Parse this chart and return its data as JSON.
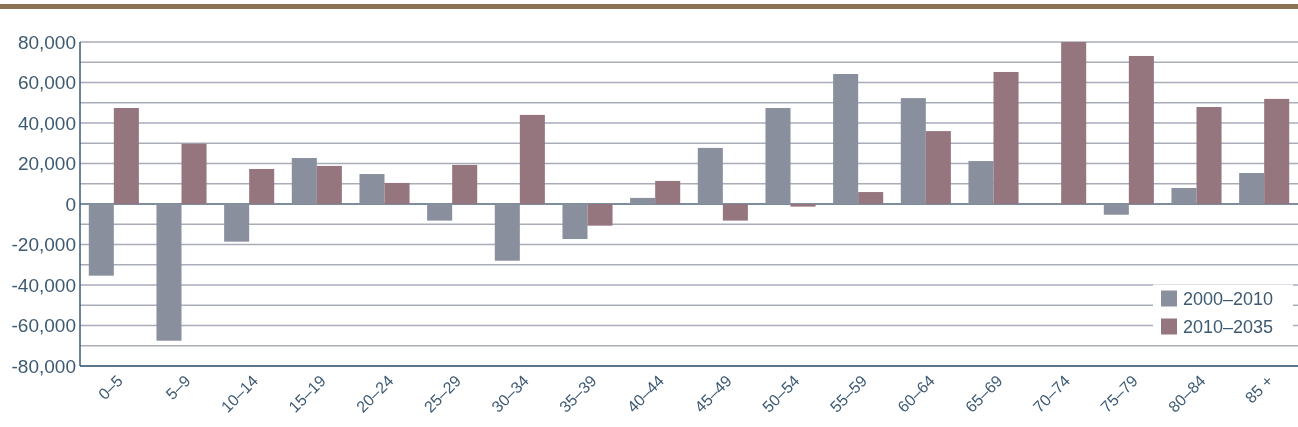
{
  "chart_data": {
    "type": "bar",
    "categories": [
      "0–5",
      "5–9",
      "10–14",
      "15–19",
      "20–24",
      "25–29",
      "30–34",
      "35–39",
      "40–44",
      "45–49",
      "50–54",
      "55–59",
      "60–64",
      "65–69",
      "70–74",
      "75–79",
      "80–84",
      "85 +"
    ],
    "series": [
      {
        "name": "2000–2010",
        "color": "#8a8f9e",
        "values": [
          -35400,
          -67500,
          -18600,
          22700,
          14800,
          -8200,
          -28000,
          -17300,
          3000,
          27700,
          47400,
          64200,
          52300,
          21200,
          500,
          -5300,
          7900,
          15300
        ]
      },
      {
        "name": "2010–2035",
        "color": "#96767e",
        "values": [
          47400,
          29800,
          17300,
          18800,
          10400,
          19300,
          44000,
          -10700,
          11400,
          -8200,
          -1300,
          5900,
          36000,
          65200,
          80000,
          73100,
          47900,
          51900
        ]
      }
    ],
    "ylim": [
      -80000,
      80000
    ],
    "yticks": [
      {
        "value": -80000,
        "label": "-80,000"
      },
      {
        "value": -70000,
        "label": null
      },
      {
        "value": -60000,
        "label": "-60,000"
      },
      {
        "value": -50000,
        "label": null
      },
      {
        "value": -40000,
        "label": "-40,000"
      },
      {
        "value": -30000,
        "label": null
      },
      {
        "value": -20000,
        "label": "-20,000"
      },
      {
        "value": -10000,
        "label": null
      },
      0,
      {
        "value": 10000,
        "label": null
      },
      {
        "value": 20000,
        "label": "20,000"
      },
      {
        "value": 30000,
        "label": null
      },
      {
        "value": 40000,
        "label": "40,000"
      },
      {
        "value": 50000,
        "label": null
      },
      {
        "value": 60000,
        "label": "60,000"
      },
      {
        "value": 70000,
        "label": null
      },
      {
        "value": 80000,
        "label": "80,000"
      }
    ],
    "ref_lines": [
      {
        "axis": "y",
        "value": 0,
        "color": "#3d5a73"
      }
    ],
    "grid": "y",
    "legend": "bottom right"
  }
}
